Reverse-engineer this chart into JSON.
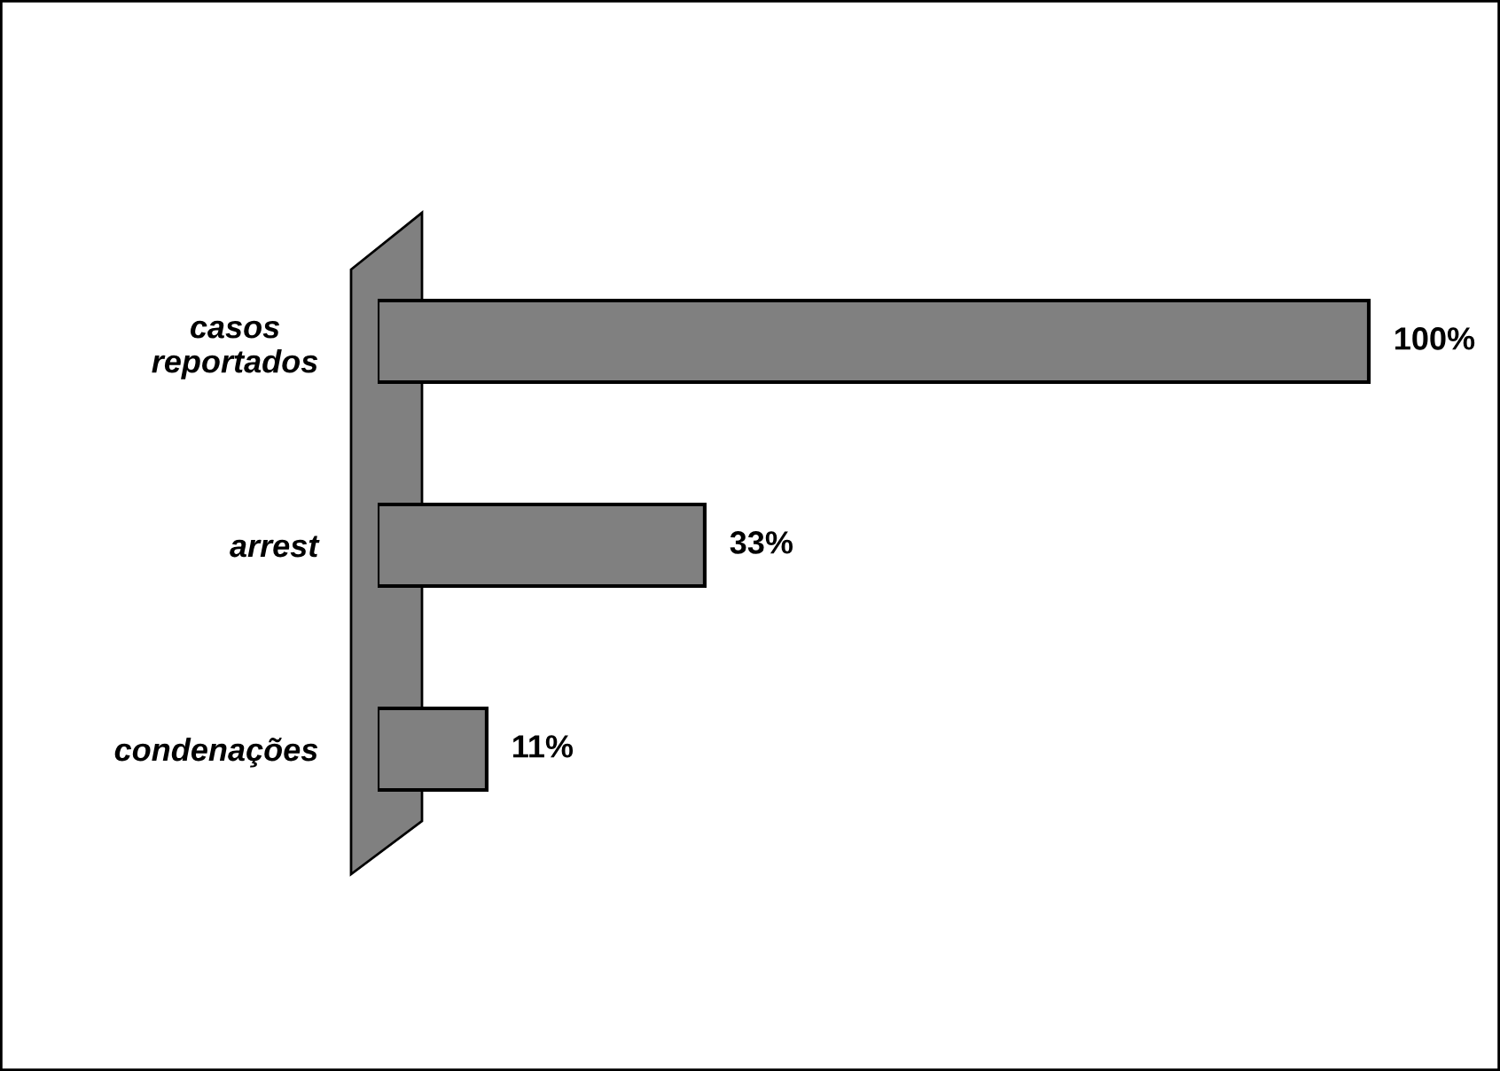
{
  "chart_data": {
    "type": "bar",
    "orientation": "horizontal",
    "categories": [
      "casos\nreportados",
      "arrest",
      "condenações"
    ],
    "values": [
      100,
      33,
      11
    ],
    "color": "#808080",
    "value_labels": [
      "100%",
      "33%",
      "11%"
    ]
  }
}
